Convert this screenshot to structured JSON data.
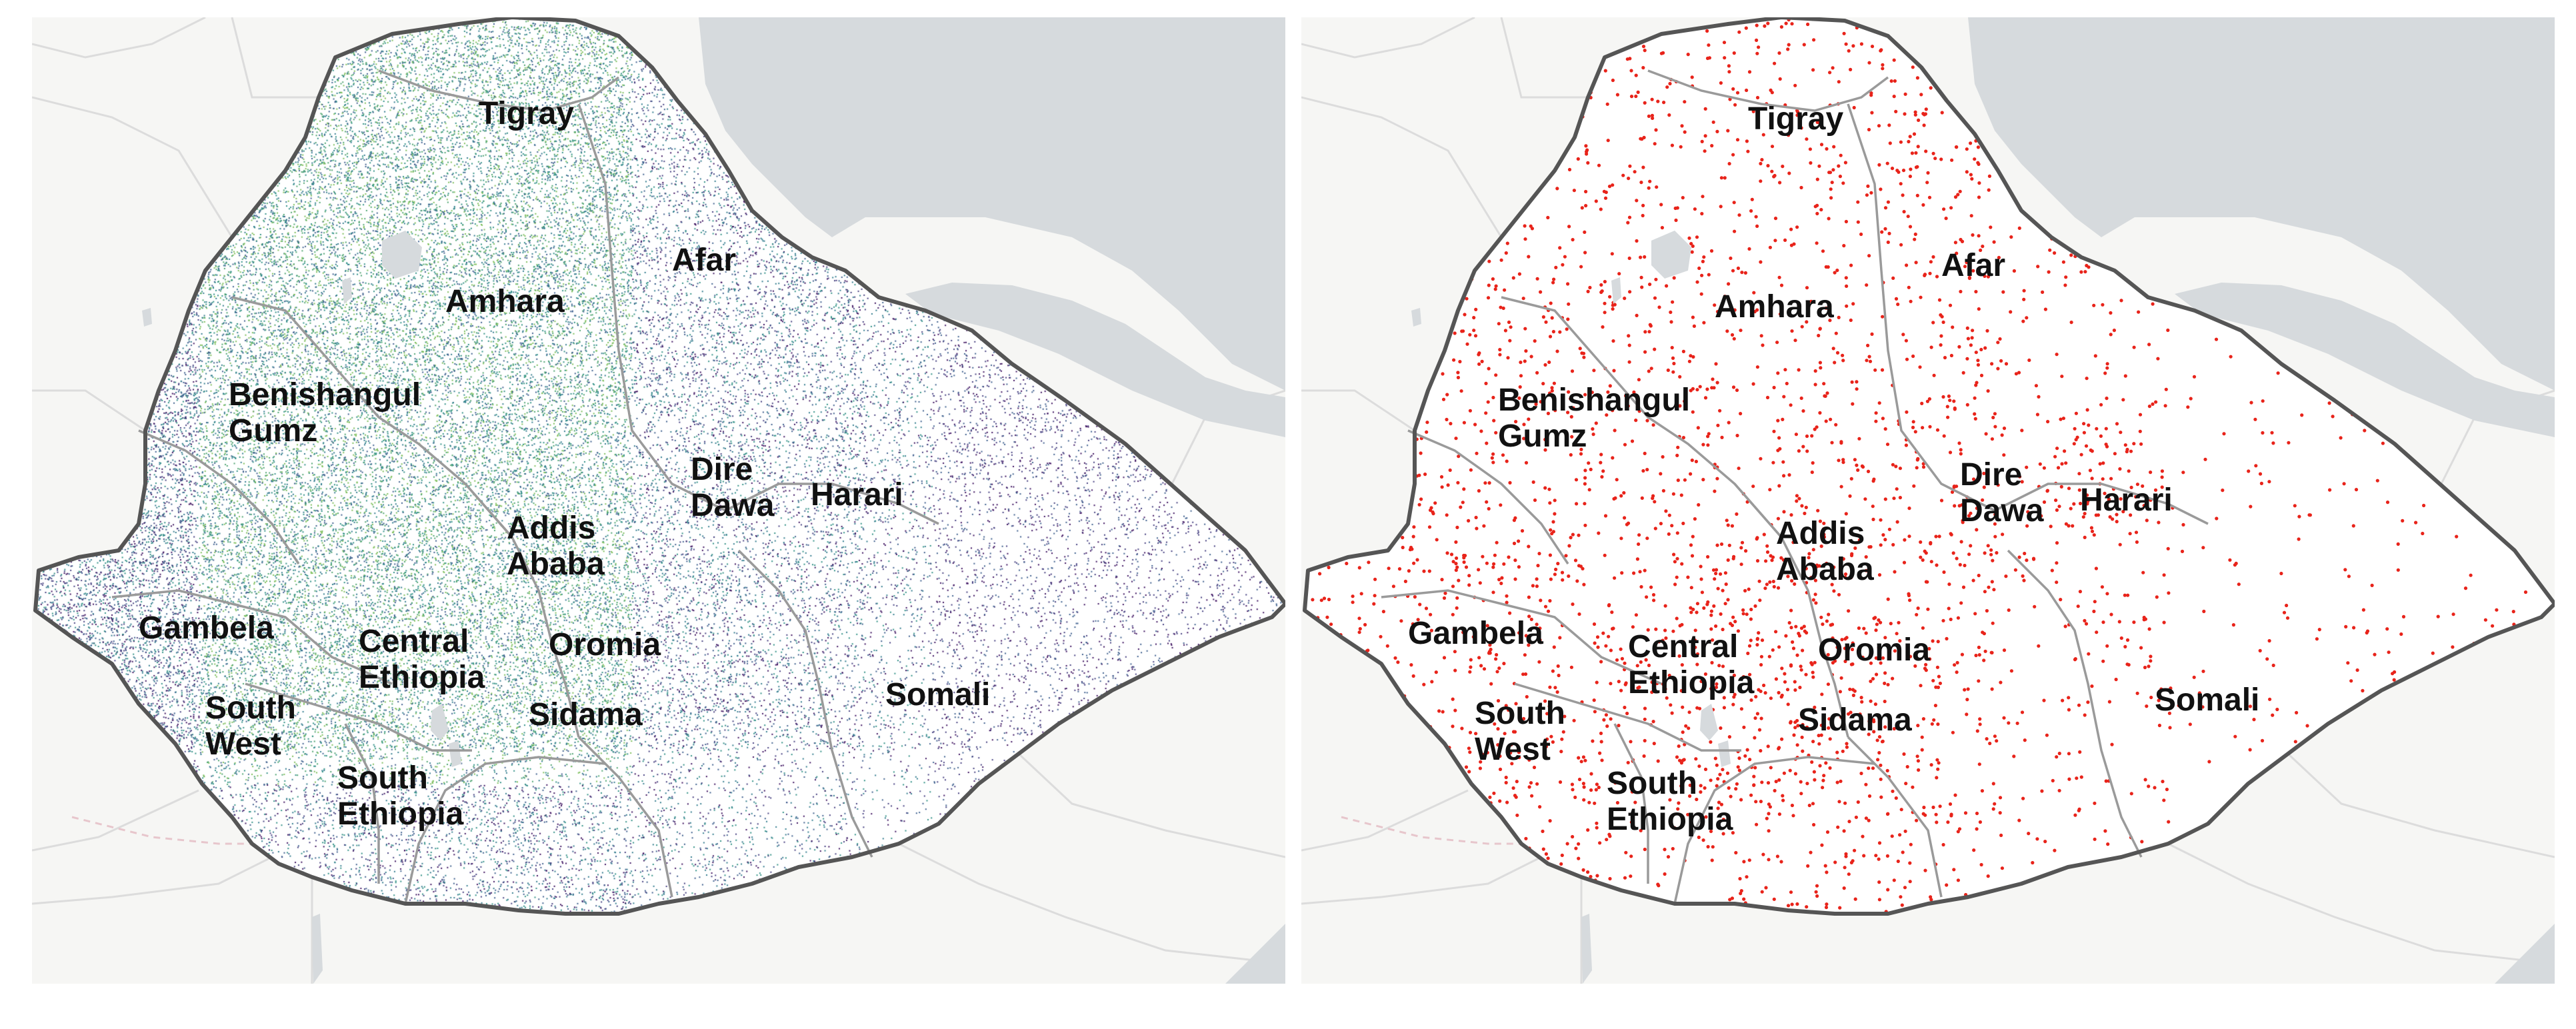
{
  "colors": {
    "background": "#f6f6f4",
    "water": "#d6dadd",
    "country_fill": "#ffffff",
    "country_border": "#555555",
    "region_border": "#9a9a9a",
    "foreign_border": "#e7c6cc",
    "foreign_region_border": "#dcdcdc",
    "heat_ramp": [
      "#3b0f5e",
      "#433d7f",
      "#3b5d8c",
      "#2f7a8c",
      "#2e8f84",
      "#4aa26d",
      "#7bbd58"
    ],
    "points": "#e8231a"
  },
  "maps": {
    "left": {
      "type": "density-raster",
      "icon": "heat-density-icon",
      "labels": [
        {
          "id": "tigray",
          "text": "Tigray"
        },
        {
          "id": "afar",
          "text": "Afar"
        },
        {
          "id": "amhara",
          "text": "Amhara"
        },
        {
          "id": "benishangul-gumz",
          "text": "Benishangul\nGumz"
        },
        {
          "id": "dire-dawa",
          "text": "Dire\nDawa"
        },
        {
          "id": "harari",
          "text": "Harari"
        },
        {
          "id": "addis-ababa",
          "text": "Addis\nAbaba"
        },
        {
          "id": "gambela",
          "text": "Gambela"
        },
        {
          "id": "central-ethiopia",
          "text": "Central\nEthiopia"
        },
        {
          "id": "oromia",
          "text": "Oromia"
        },
        {
          "id": "somali",
          "text": "Somali"
        },
        {
          "id": "sidama",
          "text": "Sidama"
        },
        {
          "id": "south-west",
          "text": "South\nWest"
        },
        {
          "id": "south-ethiopia",
          "text": "South\nEthiopia"
        }
      ]
    },
    "right": {
      "type": "point-locations",
      "icon": "point-marker-icon",
      "labels": [
        {
          "id": "tigray",
          "text": "Tigray"
        },
        {
          "id": "afar",
          "text": "Afar"
        },
        {
          "id": "amhara",
          "text": "Amhara"
        },
        {
          "id": "benishangul-gumz",
          "text": "Benishangul\nGumz"
        },
        {
          "id": "dire-dawa",
          "text": "Dire\nDawa"
        },
        {
          "id": "harari",
          "text": "Harari"
        },
        {
          "id": "addis-ababa",
          "text": "Addis\nAbaba"
        },
        {
          "id": "gambela",
          "text": "Gambela"
        },
        {
          "id": "central-ethiopia",
          "text": "Central\nEthiopia"
        },
        {
          "id": "oromia",
          "text": "Oromia"
        },
        {
          "id": "somali",
          "text": "Somali"
        },
        {
          "id": "sidama",
          "text": "Sidama"
        },
        {
          "id": "south-west",
          "text": "South\nWest"
        },
        {
          "id": "south-ethiopia",
          "text": "South\nEthiopia"
        }
      ]
    }
  }
}
